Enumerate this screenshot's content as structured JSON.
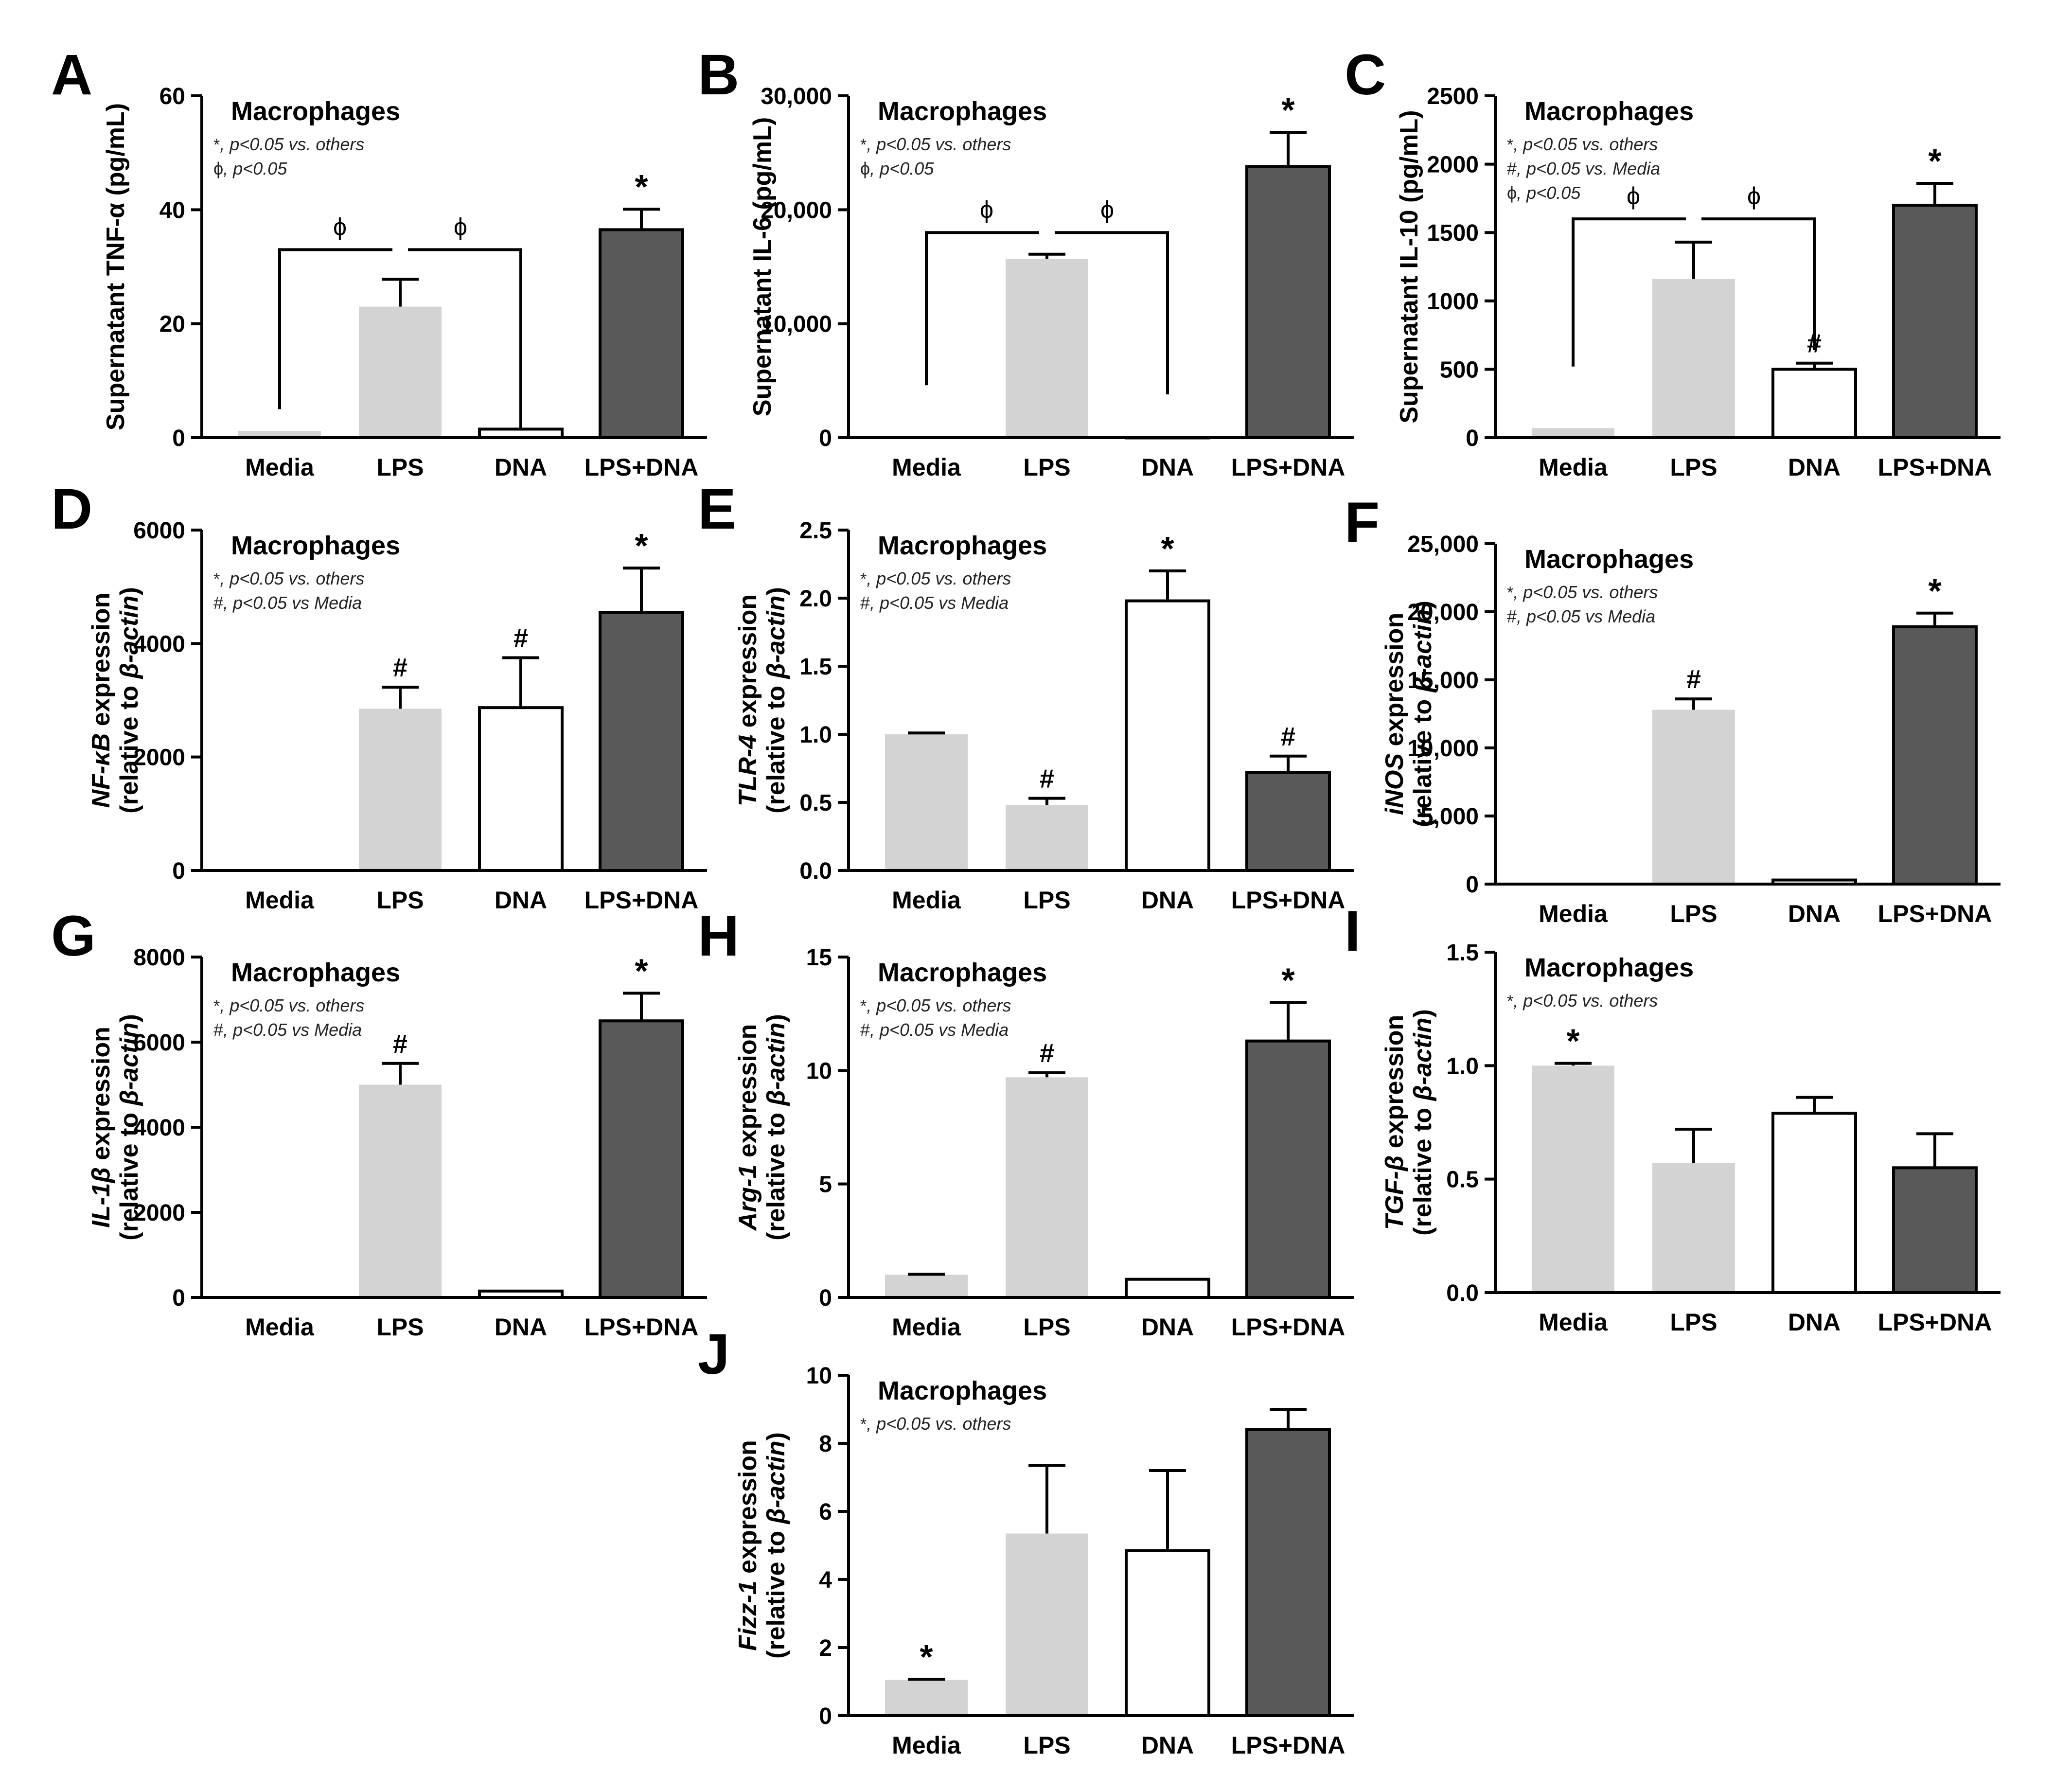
{
  "figure": {
    "categories": [
      "Media",
      "LPS",
      "DNA",
      "LPS+DNA"
    ],
    "bar_colors": [
      "#d3d3d3",
      "#d3d3d3",
      "#ffffff",
      "#595959"
    ],
    "axis_color": "#000000"
  },
  "chart_data": [
    {
      "panel": "A",
      "type": "bar",
      "title": "Macrophages",
      "ylabel": "Supernatant TNF-α (pg/mL)",
      "ylabel_parts": [
        {
          "t": "Supernatant TNF-α (pg/mL)",
          "i": false
        }
      ],
      "ylabel2_parts": [],
      "ylim": [
        0,
        60
      ],
      "yticks": [
        0,
        20,
        40,
        60
      ],
      "ytick_labels": [
        "0",
        "20",
        "40",
        "60"
      ],
      "categories": [
        "Media",
        "LPS",
        "DNA",
        "LPS+DNA"
      ],
      "values": [
        1.2,
        23,
        1.5,
        36.5
      ],
      "errors": [
        0,
        4.8,
        0,
        3.6
      ],
      "bar_labels": [
        "",
        "",
        "",
        "*"
      ],
      "legend": [
        {
          "sym": "*",
          "text": ", p<0.05 vs. others"
        },
        {
          "sym": "ϕ",
          "text": ", p<0.05"
        }
      ],
      "brackets": [
        {
          "from": 0,
          "to": 1,
          "y1": 5,
          "y2": 33,
          "label": "ϕ"
        },
        {
          "from": 1,
          "to": 2,
          "y1": 33,
          "y2": 1.5,
          "label": "ϕ"
        }
      ]
    },
    {
      "panel": "B",
      "type": "bar",
      "title": "Macrophages",
      "ylabel": "Supernatant IL-6 (pg/mL)",
      "ylabel_parts": [
        {
          "t": "Supernatant IL-6 (pg/mL)",
          "i": false
        }
      ],
      "ylabel2_parts": [],
      "ylim": [
        0,
        30000
      ],
      "yticks": [
        0,
        10000,
        20000,
        30000
      ],
      "ytick_labels": [
        "0",
        "10,000",
        "20,000",
        "30,000"
      ],
      "categories": [
        "Media",
        "LPS",
        "DNA",
        "LPS+DNA"
      ],
      "values": [
        0,
        15700,
        0,
        23800
      ],
      "errors": [
        0,
        400,
        0,
        3000
      ],
      "bar_labels": [
        "",
        "",
        "",
        "*"
      ],
      "legend": [
        {
          "sym": "*",
          "text": ", p<0.05 vs. others"
        },
        {
          "sym": "ϕ",
          "text": ", p<0.05"
        }
      ],
      "brackets": [
        {
          "from": 0,
          "to": 1,
          "y1": 4600,
          "y2": 18000,
          "label": "ϕ"
        },
        {
          "from": 1,
          "to": 2,
          "y1": 18000,
          "y2": 3800,
          "label": "ϕ"
        }
      ]
    },
    {
      "panel": "C",
      "type": "bar",
      "title": "Macrophages",
      "ylabel": "Supernatant IL-10 (pg/mL)",
      "ylabel_parts": [
        {
          "t": "Supernatant IL-10 (pg/mL)",
          "i": false
        }
      ],
      "ylabel2_parts": [],
      "ylim": [
        0,
        2500
      ],
      "yticks": [
        0,
        500,
        1000,
        1500,
        2000,
        2500
      ],
      "ytick_labels": [
        "0",
        "500",
        "1000",
        "1500",
        "2000",
        "2500"
      ],
      "categories": [
        "Media",
        "LPS",
        "DNA",
        "LPS+DNA"
      ],
      "values": [
        70,
        1160,
        500,
        1700
      ],
      "errors": [
        0,
        270,
        45,
        160
      ],
      "bar_labels": [
        "",
        "",
        "#",
        "*"
      ],
      "legend": [
        {
          "sym": "*",
          "text": ", p<0.05 vs. others"
        },
        {
          "sym": "#",
          "text": ", p<0.05 vs. Media"
        },
        {
          "sym": "ϕ",
          "text": ", p<0.05"
        }
      ],
      "brackets": [
        {
          "from": 0,
          "to": 1,
          "y1": 520,
          "y2": 1600,
          "label": "ϕ"
        },
        {
          "from": 1,
          "to": 2,
          "y1": 1600,
          "y2": 640,
          "label": "ϕ"
        }
      ]
    },
    {
      "panel": "D",
      "type": "bar",
      "title": "Macrophages",
      "ylabel": "NF-κB expression (relative to β-actin)",
      "ylabel_parts": [
        {
          "t": "NF-κB",
          "i": true
        },
        {
          "t": " expression",
          "i": false
        }
      ],
      "ylabel2_parts": [
        {
          "t": "(relative to ",
          "i": false
        },
        {
          "t": "β-actin",
          "i": true
        },
        {
          "t": ")",
          "i": false
        }
      ],
      "ylim": [
        0,
        6000
      ],
      "yticks": [
        0,
        2000,
        4000,
        6000
      ],
      "ytick_labels": [
        "0",
        "2000",
        "4000",
        "6000"
      ],
      "categories": [
        "Media",
        "LPS",
        "DNA",
        "LPS+DNA"
      ],
      "values": [
        0,
        2850,
        2870,
        4550
      ],
      "errors": [
        0,
        380,
        880,
        780
      ],
      "bar_labels": [
        "",
        "#",
        "#",
        "*"
      ],
      "legend": [
        {
          "sym": "*",
          "text": ", p<0.05 vs. others"
        },
        {
          "sym": "#",
          "text": ", p<0.05 vs Media"
        }
      ],
      "brackets": []
    },
    {
      "panel": "E",
      "type": "bar",
      "title": "Macrophages",
      "ylabel": "TLR-4 expression (relative to β-actin)",
      "ylabel_parts": [
        {
          "t": "TLR-4",
          "i": true
        },
        {
          "t": " expression",
          "i": false
        }
      ],
      "ylabel2_parts": [
        {
          "t": "(relative to ",
          "i": false
        },
        {
          "t": "β-actin",
          "i": true
        },
        {
          "t": ")",
          "i": false
        }
      ],
      "ylim": [
        0,
        2.5
      ],
      "yticks": [
        0,
        0.5,
        1.0,
        1.5,
        2.0,
        2.5
      ],
      "ytick_labels": [
        "0.0",
        "0.5",
        "1.0",
        "1.5",
        "2.0",
        "2.5"
      ],
      "categories": [
        "Media",
        "LPS",
        "DNA",
        "LPS+DNA"
      ],
      "values": [
        1.0,
        0.48,
        1.98,
        0.72
      ],
      "errors": [
        0.01,
        0.05,
        0.22,
        0.12
      ],
      "bar_labels": [
        "",
        "#",
        "*",
        "#"
      ],
      "legend": [
        {
          "sym": "*",
          "text": ", p<0.05 vs. others"
        },
        {
          "sym": "#",
          "text": ", p<0.05 vs Media"
        }
      ],
      "brackets": []
    },
    {
      "panel": "F",
      "type": "bar",
      "title": "Macrophages",
      "ylabel": "iNOS expression (relative to β-actin)",
      "ylabel_parts": [
        {
          "t": "iNOS",
          "i": true
        },
        {
          "t": " expression",
          "i": false
        }
      ],
      "ylabel2_parts": [
        {
          "t": "(relative to ",
          "i": false
        },
        {
          "t": "β-actin",
          "i": true
        },
        {
          "t": ")",
          "i": false
        }
      ],
      "ylim": [
        0,
        25000
      ],
      "yticks": [
        0,
        5000,
        10000,
        15000,
        20000,
        25000
      ],
      "ytick_labels": [
        "0",
        "5,000",
        "10,000",
        "15,000",
        "20,000",
        "25,000"
      ],
      "categories": [
        "Media",
        "LPS",
        "DNA",
        "LPS+DNA"
      ],
      "values": [
        0,
        12800,
        300,
        18900
      ],
      "errors": [
        0,
        800,
        0,
        1000
      ],
      "bar_labels": [
        "",
        "#",
        "",
        "*"
      ],
      "legend": [
        {
          "sym": "*",
          "text": ", p<0.05 vs. others"
        },
        {
          "sym": "#",
          "text": ", p<0.05 vs Media"
        }
      ],
      "brackets": []
    },
    {
      "panel": "G",
      "type": "bar",
      "title": "Macrophages",
      "ylabel": "IL-1β expression (relative to β-actin)",
      "ylabel_parts": [
        {
          "t": "IL-1β",
          "i": true
        },
        {
          "t": " expression",
          "i": false
        }
      ],
      "ylabel2_parts": [
        {
          "t": "(relative to ",
          "i": false
        },
        {
          "t": "β-actin",
          "i": true
        },
        {
          "t": ")",
          "i": false
        }
      ],
      "ylim": [
        0,
        8000
      ],
      "yticks": [
        0,
        2000,
        4000,
        6000,
        8000
      ],
      "ytick_labels": [
        "0",
        "2000",
        "4000",
        "6000",
        "8000"
      ],
      "categories": [
        "Media",
        "LPS",
        "DNA",
        "LPS+DNA"
      ],
      "values": [
        0,
        5000,
        150,
        6500
      ],
      "errors": [
        0,
        500,
        0,
        650
      ],
      "bar_labels": [
        "",
        "#",
        "",
        "*"
      ],
      "legend": [
        {
          "sym": "*",
          "text": ", p<0.05 vs. others"
        },
        {
          "sym": "#",
          "text": ", p<0.05 vs Media"
        }
      ],
      "brackets": []
    },
    {
      "panel": "H",
      "type": "bar",
      "title": "Macrophages",
      "ylabel": "Arg-1 expression (relative to β-actin)",
      "ylabel_parts": [
        {
          "t": "Arg-1",
          "i": true
        },
        {
          "t": " expression",
          "i": false
        }
      ],
      "ylabel2_parts": [
        {
          "t": "(relative to ",
          "i": false
        },
        {
          "t": "β-actin",
          "i": true
        },
        {
          "t": ")",
          "i": false
        }
      ],
      "ylim": [
        0,
        15
      ],
      "yticks": [
        0,
        5,
        10,
        15
      ],
      "ytick_labels": [
        "0",
        "5",
        "10",
        "15"
      ],
      "categories": [
        "Media",
        "LPS",
        "DNA",
        "LPS+DNA"
      ],
      "values": [
        1.0,
        9.7,
        0.8,
        11.3
      ],
      "errors": [
        0.02,
        0.2,
        0,
        1.7
      ],
      "bar_labels": [
        "",
        "#",
        "",
        "*"
      ],
      "legend": [
        {
          "sym": "*",
          "text": ", p<0.05 vs. others"
        },
        {
          "sym": "#",
          "text": ", p<0.05 vs Media"
        }
      ],
      "brackets": []
    },
    {
      "panel": "I",
      "type": "bar",
      "title": "Macrophages",
      "ylabel": "TGF-β expression (relative to β-actin)",
      "ylabel_parts": [
        {
          "t": "TGF-β",
          "i": true
        },
        {
          "t": " expression",
          "i": false
        }
      ],
      "ylabel2_parts": [
        {
          "t": "(relative to ",
          "i": false
        },
        {
          "t": "β-actin",
          "i": true
        },
        {
          "t": ")",
          "i": false
        }
      ],
      "ylim": [
        0,
        1.5
      ],
      "yticks": [
        0,
        0.5,
        1.0,
        1.5
      ],
      "ytick_labels": [
        "0.0",
        "0.5",
        "1.0",
        "1.5"
      ],
      "categories": [
        "Media",
        "LPS",
        "DNA",
        "LPS+DNA"
      ],
      "values": [
        1.0,
        0.57,
        0.79,
        0.55
      ],
      "errors": [
        0.01,
        0.15,
        0.07,
        0.15
      ],
      "bar_labels": [
        "*",
        "",
        "",
        ""
      ],
      "legend": [
        {
          "sym": "*",
          "text": ", p<0.05 vs. others"
        }
      ],
      "brackets": []
    },
    {
      "panel": "J",
      "type": "bar",
      "title": "Macrophages",
      "ylabel": "Fizz-1 expression (relative to β-actin)",
      "ylabel_parts": [
        {
          "t": "Fizz-1",
          "i": true
        },
        {
          "t": " expression",
          "i": false
        }
      ],
      "ylabel2_parts": [
        {
          "t": "(relative to ",
          "i": false
        },
        {
          "t": "β-actin",
          "i": true
        },
        {
          "t": ")",
          "i": false
        }
      ],
      "ylim": [
        0,
        10
      ],
      "yticks": [
        0,
        2,
        4,
        6,
        8,
        10
      ],
      "ytick_labels": [
        "0",
        "2",
        "4",
        "6",
        "8",
        "10"
      ],
      "categories": [
        "Media",
        "LPS",
        "DNA",
        "LPS+DNA"
      ],
      "values": [
        1.05,
        5.35,
        4.85,
        8.4
      ],
      "errors": [
        0.02,
        2.0,
        2.35,
        0.6
      ],
      "bar_labels": [
        "*",
        "",
        "",
        ""
      ],
      "legend": [
        {
          "sym": "*",
          "text": ", p<0.05 vs. others"
        }
      ],
      "brackets": []
    }
  ]
}
